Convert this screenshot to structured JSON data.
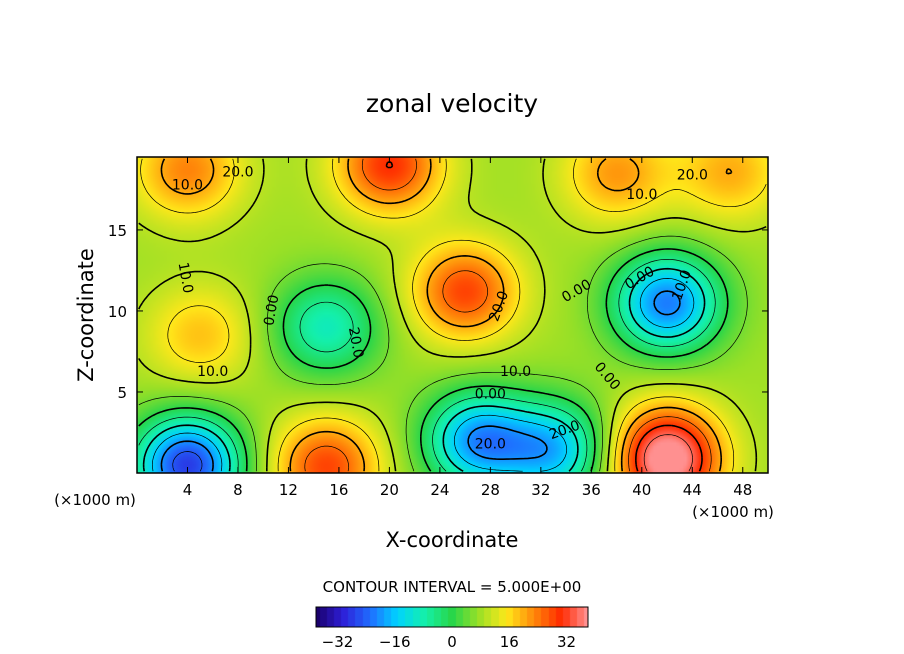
{
  "chart_data": {
    "type": "heatmap",
    "title": "zonal velocity",
    "xlabel": "X-coordinate",
    "ylabel": "Z-coordinate",
    "x_unit_left": "(×1000 m)",
    "x_unit_right": "(×1000 m)",
    "xlim": [
      0,
      50
    ],
    "ylim": [
      0,
      19.5
    ],
    "x_ticks": [
      "4",
      "8",
      "12",
      "16",
      "20",
      "24",
      "28",
      "32",
      "36",
      "40",
      "44",
      "48"
    ],
    "x_tick_values": [
      4,
      8,
      12,
      16,
      20,
      24,
      28,
      32,
      36,
      40,
      44,
      48
    ],
    "y_ticks": [
      "5",
      "10",
      "15"
    ],
    "y_tick_values": [
      5,
      10,
      15
    ],
    "contour_interval_text": "CONTOUR INTERVAL = 5.000E+00",
    "contour_labels": [
      "20.0",
      "20.0",
      "10.0",
      "10.0",
      "10.0",
      "10.0",
      "0.00",
      "0.00",
      "0.00",
      "0.00",
      "20.0",
      "20.0",
      "10.0",
      "20.0",
      "0.00",
      "10.0",
      "20.0"
    ],
    "colorbar": {
      "range": [
        -38,
        38
      ],
      "ticks": [
        "-32",
        "-16",
        "0",
        "16",
        "32"
      ],
      "tick_values": [
        -32,
        -16,
        0,
        16,
        32
      ],
      "colormap": [
        "#1a006b",
        "#2e1fd8",
        "#1f6fff",
        "#00d2ff",
        "#14f0aa",
        "#28d64a",
        "#9be026",
        "#ffe81a",
        "#ff8a0a",
        "#ff2a00",
        "#ff9090"
      ]
    },
    "features": [
      {
        "name": "max",
        "x": 26,
        "z": 11.2,
        "value": 32
      },
      {
        "name": "max",
        "x": 5,
        "z": 8.5,
        "value": 20
      },
      {
        "name": "max",
        "x": 15,
        "z": 0.4,
        "value": 32
      },
      {
        "name": "max",
        "x": 42,
        "z": 1.5,
        "value": 30
      },
      {
        "name": "max",
        "x": 42,
        "z": 0.2,
        "value": 28
      },
      {
        "name": "max",
        "x": 20,
        "z": 19,
        "value": 34
      },
      {
        "name": "max",
        "x": 4,
        "z": 18.7,
        "value": 26
      },
      {
        "name": "max",
        "x": 38,
        "z": 18.5,
        "value": 24
      },
      {
        "name": "max",
        "x": 47,
        "z": 18.6,
        "value": 22
      },
      {
        "name": "min",
        "x": 15,
        "z": 9,
        "value": -12
      },
      {
        "name": "min",
        "x": 42,
        "z": 10.5,
        "value": -27
      },
      {
        "name": "min",
        "x": 4,
        "z": 0.5,
        "value": -34
      },
      {
        "name": "min",
        "x": 27,
        "z": 2,
        "value": -24
      },
      {
        "name": "min",
        "x": 33,
        "z": 1.4,
        "value": -20
      }
    ]
  }
}
